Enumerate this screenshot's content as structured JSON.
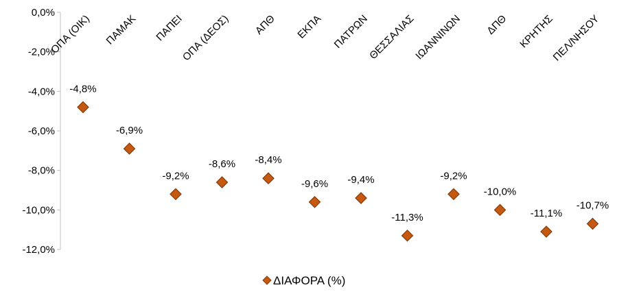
{
  "chart_data": {
    "type": "scatter",
    "categories": [
      "ΟΠΑ (ΟΙΚ)",
      "ΠΑΜΑΚ",
      "ΠΑΠΕΙ",
      "ΟΠΑ (ΔΕΟΣ)",
      "ΑΠΘ",
      "ΕΚΠΑ",
      "ΠΑΤΡΩΝ",
      "ΘΕΣΣΑΛΙΑΣ",
      "ΙΩΑΝΝΙΝΩΝ",
      "ΔΠΘ",
      "ΚΡΗΤΗΣ",
      "ΠΕΛ/ΝΗΣΟΥ"
    ],
    "series": [
      {
        "name": "ΔΙΑΦΟΡΑ (%)",
        "values": [
          -4.8,
          -6.9,
          -9.2,
          -8.6,
          -8.4,
          -9.6,
          -9.4,
          -11.3,
          -9.2,
          -10.0,
          -11.1,
          -10.7
        ],
        "labels": [
          "-4,8%",
          "-6,9%",
          "-9,2%",
          "-8,6%",
          "-8,4%",
          "-9,6%",
          "-9,4%",
          "-11,3%",
          "-9,2%",
          "-10,0%",
          "-11,1%",
          "-10,7%"
        ]
      }
    ],
    "yticks": [
      "0,0%",
      "-2,0%",
      "-4,0%",
      "-6,0%",
      "-8,0%",
      "-10,0%",
      "-12,0%"
    ],
    "ylim": [
      -12,
      0
    ],
    "grid": false,
    "legend_position": "bottom",
    "marker": "diamond",
    "colors": {
      "marker_fill": "#C65911",
      "marker_edge": "#843C0C",
      "axis": "#BFBFBF"
    }
  }
}
